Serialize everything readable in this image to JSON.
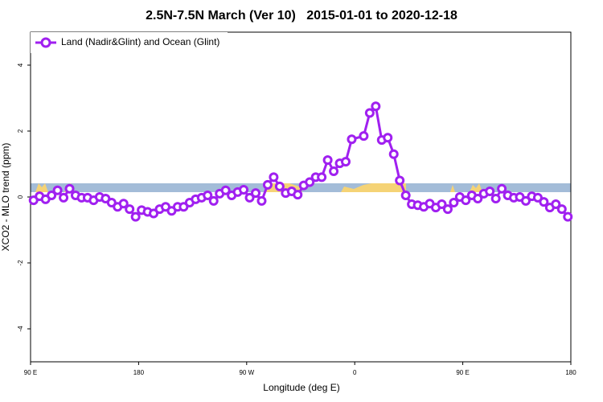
{
  "chart_data": {
    "type": "line",
    "title": "2.5N-7.5N March (Ver 10)   2015-01-01 to 2020-12-18",
    "x_label": "Longitude (deg E)",
    "y_label": "XCO2 - MLO trend (ppm)",
    "xlim": [
      90,
      540
    ],
    "ylim": [
      -5,
      5
    ],
    "xticks": [
      {
        "value": 90,
        "label": "90 E"
      },
      {
        "value": 180,
        "label": "180"
      },
      {
        "value": 270,
        "label": "90 W"
      },
      {
        "value": 360,
        "label": "0"
      },
      {
        "value": 450,
        "label": "90 E"
      },
      {
        "value": 540,
        "label": "180"
      }
    ],
    "yticks": [
      -4,
      -2,
      0,
      2,
      4
    ],
    "legend": "upper left",
    "x": [
      92.5,
      97.5,
      102.5,
      107.5,
      112.5,
      117.5,
      122.5,
      127.5,
      132.5,
      137.5,
      142.5,
      147.5,
      152.5,
      157.5,
      162.5,
      167.5,
      172.5,
      177.5,
      182.5,
      187.5,
      192.5,
      197.5,
      202.5,
      207.5,
      212.5,
      217.5,
      222.5,
      227.5,
      232.5,
      237.5,
      242.5,
      247.5,
      252.5,
      257.5,
      262.5,
      267.5,
      272.5,
      277.5,
      282.5,
      287.5,
      292.5,
      297.5,
      302.5,
      307.5,
      312.5,
      317.5,
      322.5,
      327.5,
      332.5,
      337.5,
      342.5,
      347.5,
      352.5,
      357.5,
      367.5,
      372.5,
      377.5,
      382.5,
      387.5,
      392.5,
      397.5,
      402.5,
      407.5,
      412.5,
      417.5,
      422.5,
      427.5,
      432.5,
      437.5,
      442.5,
      447.5,
      452.5,
      457.5,
      462.5,
      467.5,
      472.5,
      477.5,
      482.5,
      487.5,
      492.5,
      497.5,
      502.5,
      507.5,
      512.5,
      517.5,
      522.5,
      527.5,
      532.5,
      537.5
    ],
    "series": [
      {
        "name": "Land (Nadir&Glint) and Ocean (Glint)",
        "color": "#a020f0",
        "values": [
          -0.1,
          0.02,
          -0.07,
          0.05,
          0.2,
          -0.02,
          0.25,
          0.05,
          -0.02,
          -0.02,
          -0.1,
          0.0,
          -0.05,
          -0.17,
          -0.3,
          -0.2,
          -0.37,
          -0.6,
          -0.4,
          -0.45,
          -0.5,
          -0.37,
          -0.3,
          -0.42,
          -0.3,
          -0.3,
          -0.17,
          -0.07,
          -0.02,
          0.05,
          -0.12,
          0.1,
          0.2,
          0.05,
          0.15,
          0.22,
          -0.02,
          0.12,
          -0.12,
          0.37,
          0.6,
          0.32,
          0.12,
          0.17,
          0.07,
          0.35,
          0.45,
          0.6,
          0.6,
          1.12,
          0.78,
          1.02,
          1.07,
          1.75,
          1.85,
          2.55,
          2.75,
          1.73,
          1.8,
          1.3,
          0.5,
          0.05,
          -0.22,
          -0.25,
          -0.3,
          -0.2,
          -0.32,
          -0.22,
          -0.37,
          -0.17,
          0.0,
          -0.1,
          0.05,
          -0.05,
          0.1,
          0.17,
          -0.05,
          0.25,
          0.05,
          -0.02,
          0.0,
          -0.12,
          0.02,
          -0.02,
          -0.15,
          -0.32,
          -0.22,
          -0.37,
          -0.6
        ]
      }
    ]
  }
}
